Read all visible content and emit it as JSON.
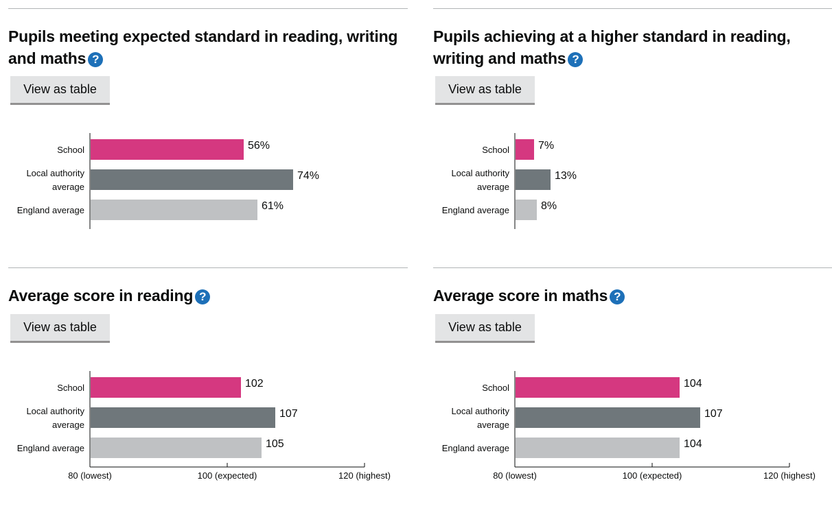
{
  "colors": {
    "school": "#d53880",
    "local": "#6f777b",
    "england": "#bfc1c3",
    "axis": "#0b0c0c"
  },
  "help_glyph": "?",
  "panels": [
    {
      "title": "Pupils meeting expected standard in reading, writing and maths",
      "button_label": "View as table",
      "chart_data": {
        "type": "bar",
        "orientation": "horizontal",
        "categories": [
          [
            "School"
          ],
          [
            "Local authority",
            "average"
          ],
          [
            "England average"
          ]
        ],
        "values": [
          56,
          74,
          61
        ],
        "value_labels": [
          "56%",
          "74%",
          "61%"
        ],
        "xlim": [
          0,
          100
        ],
        "ticks": []
      }
    },
    {
      "title": "Pupils achieving at a higher standard in reading, writing and maths",
      "button_label": "View as table",
      "chart_data": {
        "type": "bar",
        "orientation": "horizontal",
        "categories": [
          [
            "School"
          ],
          [
            "Local authority",
            "average"
          ],
          [
            "England average"
          ]
        ],
        "values": [
          7,
          13,
          8
        ],
        "value_labels": [
          "7%",
          "13%",
          "8%"
        ],
        "xlim": [
          0,
          100
        ],
        "ticks": []
      }
    },
    {
      "title": "Average score in reading",
      "button_label": "View as table",
      "chart_data": {
        "type": "bar",
        "orientation": "horizontal",
        "categories": [
          [
            "School"
          ],
          [
            "Local authority",
            "average"
          ],
          [
            "England average"
          ]
        ],
        "values": [
          102,
          107,
          105
        ],
        "value_labels": [
          "102",
          "107",
          "105"
        ],
        "xlim": [
          80,
          120
        ],
        "ticks": [
          {
            "value": 80,
            "label": "80 (lowest)"
          },
          {
            "value": 100,
            "label": "100 (expected)"
          },
          {
            "value": 120,
            "label": "120 (highest)"
          }
        ]
      }
    },
    {
      "title": "Average score in maths",
      "button_label": "View as table",
      "chart_data": {
        "type": "bar",
        "orientation": "horizontal",
        "categories": [
          [
            "School"
          ],
          [
            "Local authority",
            "average"
          ],
          [
            "England average"
          ]
        ],
        "values": [
          104,
          107,
          104
        ],
        "value_labels": [
          "104",
          "107",
          "104"
        ],
        "xlim": [
          80,
          120
        ],
        "ticks": [
          {
            "value": 80,
            "label": "80 (lowest)"
          },
          {
            "value": 100,
            "label": "100 (expected)"
          },
          {
            "value": 120,
            "label": "120 (highest)"
          }
        ]
      }
    }
  ]
}
